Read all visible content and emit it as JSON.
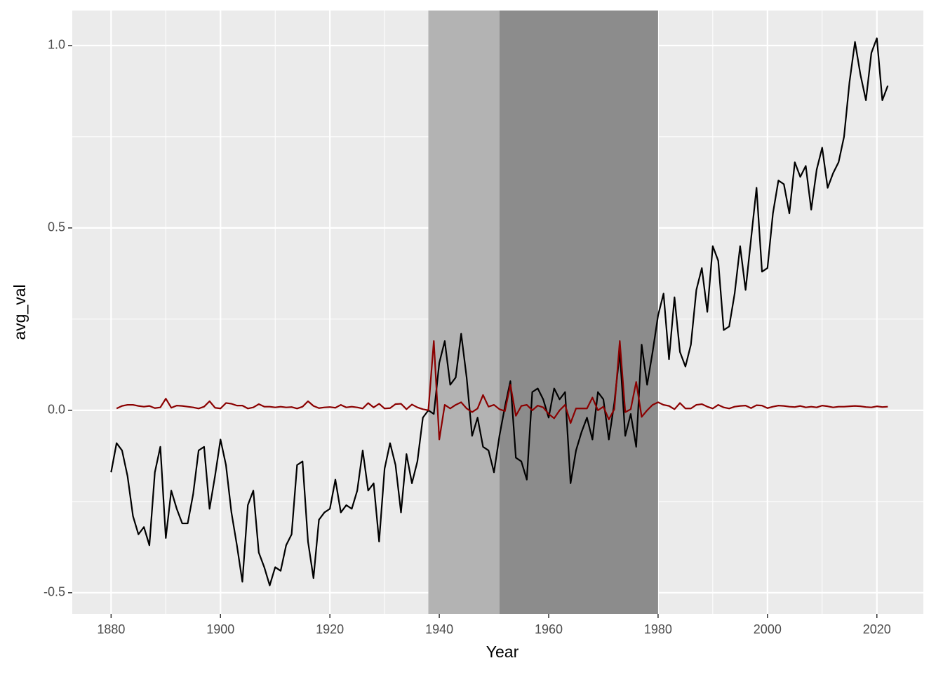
{
  "chart_data": {
    "type": "line",
    "x_label": "Year",
    "y_label": "avg_val",
    "x": [
      1880,
      1881,
      1882,
      1883,
      1884,
      1885,
      1886,
      1887,
      1888,
      1889,
      1890,
      1891,
      1892,
      1893,
      1894,
      1895,
      1896,
      1897,
      1898,
      1899,
      1900,
      1901,
      1902,
      1903,
      1904,
      1905,
      1906,
      1907,
      1908,
      1909,
      1910,
      1911,
      1912,
      1913,
      1914,
      1915,
      1916,
      1917,
      1918,
      1919,
      1920,
      1921,
      1922,
      1923,
      1924,
      1925,
      1926,
      1927,
      1928,
      1929,
      1930,
      1931,
      1932,
      1933,
      1934,
      1935,
      1936,
      1937,
      1938,
      1939,
      1940,
      1941,
      1942,
      1943,
      1944,
      1945,
      1946,
      1947,
      1948,
      1949,
      1950,
      1951,
      1952,
      1953,
      1954,
      1955,
      1956,
      1957,
      1958,
      1959,
      1960,
      1961,
      1962,
      1963,
      1964,
      1965,
      1966,
      1967,
      1968,
      1969,
      1970,
      1971,
      1972,
      1973,
      1974,
      1975,
      1976,
      1977,
      1978,
      1979,
      1980,
      1981,
      1982,
      1983,
      1984,
      1985,
      1986,
      1987,
      1988,
      1989,
      1990,
      1991,
      1992,
      1993,
      1994,
      1995,
      1996,
      1997,
      1998,
      1999,
      2000,
      2001,
      2002,
      2003,
      2004,
      2005,
      2006,
      2007,
      2008,
      2009,
      2010,
      2011,
      2012,
      2013,
      2014,
      2015,
      2016,
      2017,
      2018,
      2019,
      2020,
      2021,
      2022
    ],
    "series": [
      {
        "color": "#000000",
        "values": [
          -0.17,
          -0.09,
          -0.11,
          -0.18,
          -0.29,
          -0.34,
          -0.32,
          -0.37,
          -0.17,
          -0.1,
          -0.35,
          -0.22,
          -0.27,
          -0.31,
          -0.31,
          -0.23,
          -0.11,
          -0.1,
          -0.27,
          -0.18,
          -0.08,
          -0.15,
          -0.28,
          -0.37,
          -0.47,
          -0.26,
          -0.22,
          -0.39,
          -0.43,
          -0.48,
          -0.43,
          -0.44,
          -0.37,
          -0.34,
          -0.15,
          -0.14,
          -0.36,
          -0.46,
          -0.3,
          -0.28,
          -0.27,
          -0.19,
          -0.28,
          -0.26,
          -0.27,
          -0.22,
          -0.11,
          -0.22,
          -0.2,
          -0.36,
          -0.16,
          -0.09,
          -0.15,
          -0.28,
          -0.12,
          -0.2,
          -0.14,
          -0.02,
          0.0,
          -0.01,
          0.13,
          0.19,
          0.07,
          0.09,
          0.21,
          0.09,
          -0.07,
          -0.02,
          -0.1,
          -0.11,
          -0.17,
          -0.07,
          0.01,
          0.08,
          -0.13,
          -0.14,
          -0.19,
          0.05,
          0.06,
          0.03,
          -0.02,
          0.06,
          0.03,
          0.05,
          -0.2,
          -0.11,
          -0.06,
          -0.02,
          -0.08,
          0.05,
          0.03,
          -0.08,
          0.02,
          0.16,
          -0.07,
          -0.01,
          -0.1,
          0.18,
          0.07,
          0.16,
          0.26,
          0.32,
          0.14,
          0.31,
          0.16,
          0.12,
          0.18,
          0.33,
          0.39,
          0.27,
          0.45,
          0.41,
          0.22,
          0.23,
          0.32,
          0.45,
          0.33,
          0.47,
          0.61,
          0.38,
          0.39,
          0.54,
          0.63,
          0.62,
          0.54,
          0.68,
          0.64,
          0.67,
          0.55,
          0.66,
          0.72,
          0.61,
          0.65,
          0.68,
          0.75,
          0.9,
          1.01,
          0.92,
          0.85,
          0.98,
          1.02,
          0.85,
          0.89
        ]
      },
      {
        "color": "#8b0000",
        "values": [
          null,
          0.005,
          0.012,
          0.015,
          0.015,
          0.012,
          0.01,
          0.012,
          0.006,
          0.008,
          0.032,
          0.007,
          0.013,
          0.012,
          0.01,
          0.008,
          0.005,
          0.01,
          0.025,
          0.007,
          0.005,
          0.02,
          0.018,
          0.013,
          0.013,
          0.005,
          0.008,
          0.017,
          0.01,
          0.01,
          0.008,
          0.01,
          0.008,
          0.009,
          0.005,
          0.01,
          0.025,
          0.012,
          0.006,
          0.008,
          0.009,
          0.007,
          0.015,
          0.008,
          0.01,
          0.008,
          0.005,
          0.02,
          0.008,
          0.018,
          0.005,
          0.006,
          0.017,
          0.018,
          0.003,
          0.016,
          0.008,
          0.003,
          0.0,
          0.19,
          -0.08,
          0.015,
          0.005,
          0.015,
          0.022,
          0.005,
          -0.005,
          0.005,
          0.042,
          0.01,
          0.015,
          0.003,
          -0.002,
          0.07,
          -0.015,
          0.012,
          0.015,
          0.0,
          0.013,
          0.008,
          -0.01,
          -0.022,
          0.0,
          0.015,
          -0.035,
          0.005,
          0.005,
          0.005,
          0.035,
          0.0,
          0.01,
          -0.025,
          0.003,
          0.19,
          -0.005,
          0.003,
          0.078,
          -0.018,
          0.0,
          0.015,
          0.022,
          0.015,
          0.012,
          0.003,
          0.02,
          0.005,
          0.005,
          0.015,
          0.017,
          0.01,
          0.005,
          0.015,
          0.008,
          0.005,
          0.01,
          0.012,
          0.013,
          0.006,
          0.014,
          0.013,
          0.006,
          0.01,
          0.013,
          0.012,
          0.01,
          0.009,
          0.012,
          0.008,
          0.01,
          0.008,
          0.013,
          0.011,
          0.008,
          0.01,
          0.01,
          0.011,
          0.012,
          0.011,
          0.009,
          0.008,
          0.011,
          0.009,
          0.01
        ]
      }
    ],
    "shaded_regions": [
      {
        "xmin": 1938,
        "xmax": 1951,
        "color": "#b3b3b3"
      },
      {
        "xmin": 1951,
        "xmax": 1980,
        "color": "#8c8c8c"
      }
    ],
    "xlim": [
      1872.9,
      2028.5
    ],
    "xticks": [
      1880,
      1900,
      1920,
      1940,
      1960,
      1980,
      2000,
      2020
    ],
    "ylim": [
      -0.558,
      1.096
    ],
    "yticks": [
      -0.5,
      {
        "value": 0,
        "label": "0.0"
      },
      0.5,
      {
        "value": 1,
        "label": "1.0"
      }
    ],
    "grid": true
  }
}
